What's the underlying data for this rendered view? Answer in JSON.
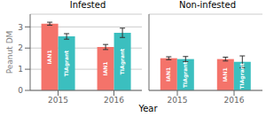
{
  "chart_data": [
    {
      "type": "bar",
      "title": "Infested",
      "x_label": "Year",
      "y_label": "Peanut DM",
      "categories": [
        "2015",
        "2016"
      ],
      "series": [
        {
          "name": "IAN1",
          "color": "#F4736A",
          "values": [
            3.15,
            2.05
          ],
          "errors": [
            0.07,
            0.12
          ]
        },
        {
          "name": "TIAgrant",
          "color": "#3BBFBF",
          "values": [
            2.55,
            2.72
          ],
          "errors": [
            0.13,
            0.22
          ]
        }
      ],
      "ylim": [
        0,
        3.6
      ],
      "yticks": [
        0,
        1,
        2,
        3
      ],
      "grid": true
    },
    {
      "type": "bar",
      "title": "Non-infested",
      "categories": [
        "2015",
        "2016"
      ],
      "series": [
        {
          "name": "IAN1",
          "color": "#F4736A",
          "values": [
            1.52,
            1.48
          ],
          "errors": [
            0.07,
            0.09
          ]
        },
        {
          "name": "TIAgrant",
          "color": "#3BBFBF",
          "values": [
            1.48,
            1.35
          ],
          "errors": [
            0.12,
            0.28
          ]
        }
      ],
      "ylim": [
        0,
        3.6
      ],
      "yticks": [
        0,
        1,
        2,
        3
      ],
      "grid": true,
      "tick_labels": "x"
    }
  ]
}
